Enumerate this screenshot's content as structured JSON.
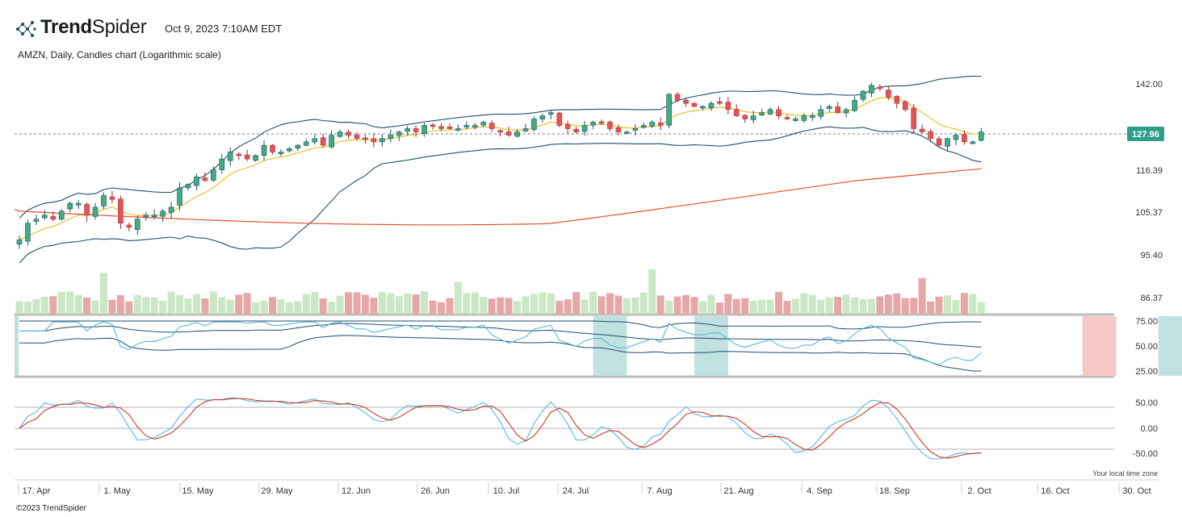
{
  "brand": {
    "name_bold": "Trend",
    "name_light": "Spider",
    "logo_icon": "trendspider-logo-icon"
  },
  "header": {
    "timestamp": "Oct 9, 2023 7:10AM EDT"
  },
  "chart_title": "AMZN, Daily, Candles chart (Logarithmic scale)",
  "footer": {
    "copyright": "©2023 TrendSpider",
    "timezone_note": "Your local time zone"
  },
  "colors": {
    "up": "#3fae7e",
    "down": "#e0545a",
    "vol_up": "#c9e8c3",
    "vol_down": "#e6a8a7",
    "bb": "#1f4e6e",
    "ema": "#e8c227",
    "sma": "#e2522b",
    "rsi": "#56b9e0",
    "stoch_k": "#56b9e0",
    "stoch_d": "#c93a2a",
    "badge": "#2e9e8c"
  },
  "chart_data": {
    "type": "candlestick",
    "symbol": "AMZN",
    "scale": "log",
    "price_axis_labels": [
      "142.00",
      "127.96",
      "116.39",
      "105.37",
      "95.40",
      "86.37"
    ],
    "last_price": "127.96",
    "rsi_axis_labels": [
      "75.00",
      "50.00",
      "25.00"
    ],
    "stoch_axis_labels": [
      "50.00",
      "0.00",
      "-50.00"
    ],
    "date_labels": [
      "17. Apr",
      "1. May",
      "15. May",
      "29. May",
      "12. Jun",
      "26. Jun",
      "10. Jul",
      "24. Jul",
      "7. Aug",
      "21. Aug",
      "4. Sep",
      "18. Sep",
      "2. Oct",
      "16. Oct",
      "30. Oct"
    ],
    "closes": [
      99,
      103,
      104,
      105,
      104,
      106,
      108,
      108,
      105,
      107,
      110,
      109,
      103,
      102,
      104,
      105,
      105,
      106,
      107,
      112,
      113,
      115,
      114,
      117,
      120,
      122,
      121,
      120,
      121,
      124,
      122,
      122,
      123,
      124,
      125,
      126,
      124,
      127,
      128,
      127,
      126,
      126,
      125,
      126,
      127,
      128,
      129,
      128,
      130,
      130,
      129,
      129,
      129,
      130,
      130,
      131,
      129,
      128,
      127,
      128,
      129,
      132,
      133,
      134,
      130,
      129,
      128,
      130,
      131,
      131,
      129,
      128,
      128,
      129,
      130,
      131,
      130,
      140,
      138,
      137,
      136,
      136,
      137,
      137,
      135,
      133,
      132,
      133,
      134,
      135,
      133,
      132,
      132,
      133,
      133,
      135,
      136,
      134,
      135,
      138,
      141,
      143,
      142,
      139,
      137,
      135,
      129,
      128,
      126,
      124,
      126,
      127,
      125,
      125,
      128
    ]
  },
  "rsi_highlights": [
    {
      "kind": "teal",
      "from": 68,
      "to": 72
    },
    {
      "kind": "teal",
      "from": 80,
      "to": 84
    },
    {
      "kind": "pink",
      "from": 126,
      "to": 130
    },
    {
      "kind": "teal",
      "from": 135,
      "to": 138
    }
  ]
}
